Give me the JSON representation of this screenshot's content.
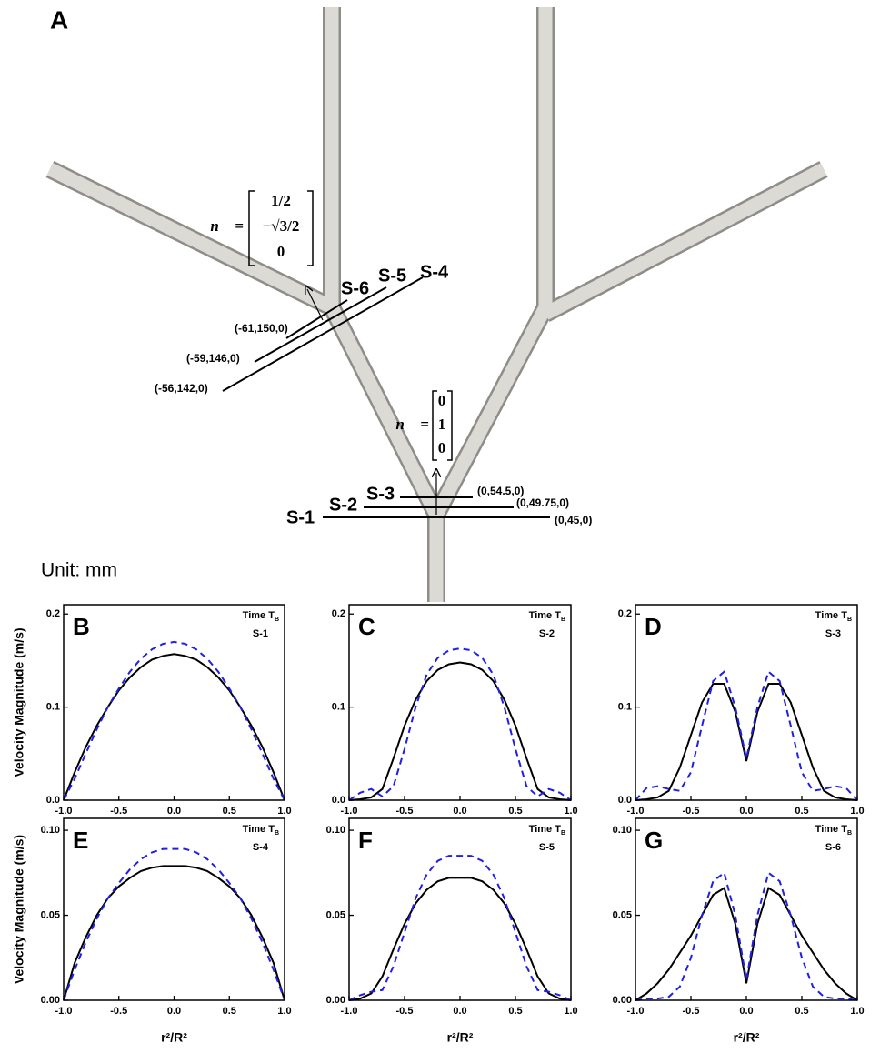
{
  "diagram": {
    "label": "A",
    "unit": "Unit: mm",
    "normals": [
      {
        "symbol": "n⃗ =",
        "components": [
          "1/2",
          "−√3/2",
          "0"
        ]
      },
      {
        "symbol": "n⃗ =",
        "components": [
          "0",
          "1",
          "0"
        ]
      }
    ],
    "sections": [
      {
        "label": "S-1",
        "point": "(0,45,0)"
      },
      {
        "label": "S-2",
        "point": "(0,49.75,0)"
      },
      {
        "label": "S-3",
        "point": "(0,54.5,0)"
      },
      {
        "label": "S-4",
        "point": "(-56,142,0)"
      },
      {
        "label": "S-5",
        "point": "(-59,146,0)"
      },
      {
        "label": "S-6",
        "point": "(-61,150,0)"
      }
    ]
  },
  "chart_data": [
    {
      "type": "line",
      "panel": "B",
      "time_label": "Time T",
      "time_subscript": "B",
      "section": "S-1",
      "ylabel": "Velocity Magnitude (m/s)",
      "x": [
        -1.0,
        -0.9,
        -0.8,
        -0.7,
        -0.6,
        -0.5,
        -0.4,
        -0.3,
        -0.2,
        -0.1,
        0.0,
        0.1,
        0.2,
        0.3,
        0.4,
        0.5,
        0.6,
        0.7,
        0.8,
        0.9,
        1.0
      ],
      "series": [
        {
          "color": "#000000",
          "dash": false,
          "values": [
            0,
            0.03,
            0.057,
            0.08,
            0.1,
            0.118,
            0.132,
            0.143,
            0.151,
            0.155,
            0.157,
            0.155,
            0.151,
            0.143,
            0.132,
            0.118,
            0.1,
            0.08,
            0.057,
            0.03,
            0
          ]
        },
        {
          "color": "#1f1fe6",
          "dash": true,
          "values": [
            0,
            0.023,
            0.05,
            0.076,
            0.1,
            0.12,
            0.138,
            0.152,
            0.162,
            0.168,
            0.17,
            0.168,
            0.162,
            0.152,
            0.138,
            0.12,
            0.1,
            0.076,
            0.05,
            0.023,
            0
          ]
        }
      ],
      "xlim": [
        -1,
        1
      ],
      "ylim": [
        0,
        0.21
      ],
      "xticks": [
        {
          "value": -1,
          "label": "-1.0"
        },
        -0.5,
        {
          "value": 0,
          "label": "0.0"
        },
        0.5,
        {
          "value": 1,
          "label": "1.0"
        }
      ],
      "yticks": [
        {
          "value": 0,
          "label": "0.0"
        },
        0.1,
        0.2
      ]
    },
    {
      "type": "line",
      "panel": "C",
      "time_label": "Time T",
      "time_subscript": "B",
      "section": "S-2",
      "x": [
        -1.0,
        -0.9,
        -0.8,
        -0.7,
        -0.6,
        -0.5,
        -0.4,
        -0.3,
        -0.2,
        -0.1,
        0.0,
        0.1,
        0.2,
        0.3,
        0.4,
        0.5,
        0.6,
        0.7,
        0.8,
        0.9,
        1.0
      ],
      "series": [
        {
          "color": "#000000",
          "dash": false,
          "values": [
            0,
            0.001,
            0.003,
            0.012,
            0.045,
            0.08,
            0.108,
            0.128,
            0.14,
            0.146,
            0.148,
            0.146,
            0.14,
            0.128,
            0.108,
            0.08,
            0.045,
            0.012,
            0.003,
            0.001,
            0
          ]
        },
        {
          "color": "#1f1fe6",
          "dash": true,
          "values": [
            0,
            0.008,
            0.012,
            0.004,
            0.015,
            0.055,
            0.1,
            0.135,
            0.153,
            0.161,
            0.163,
            0.161,
            0.153,
            0.135,
            0.1,
            0.055,
            0.015,
            0.004,
            0.012,
            0.008,
            0
          ]
        }
      ],
      "xlim": [
        -1,
        1
      ],
      "ylim": [
        0,
        0.21
      ],
      "xticks": [
        {
          "value": -1,
          "label": "-1.0"
        },
        -0.5,
        {
          "value": 0,
          "label": "0.0"
        },
        0.5,
        {
          "value": 1,
          "label": "1.0"
        }
      ],
      "yticks": [
        {
          "value": 0,
          "label": "0.0"
        },
        0.1,
        0.2
      ]
    },
    {
      "type": "line",
      "panel": "D",
      "time_label": "Time T",
      "time_subscript": "B",
      "section": "S-3",
      "x": [
        -1.0,
        -0.9,
        -0.8,
        -0.7,
        -0.6,
        -0.5,
        -0.4,
        -0.3,
        -0.2,
        -0.1,
        0.0,
        0.1,
        0.2,
        0.3,
        0.4,
        0.5,
        0.6,
        0.7,
        0.8,
        0.9,
        1.0
      ],
      "series": [
        {
          "color": "#000000",
          "dash": false,
          "values": [
            0,
            0.001,
            0.003,
            0.01,
            0.035,
            0.07,
            0.105,
            0.125,
            0.125,
            0.095,
            0.042,
            0.095,
            0.125,
            0.125,
            0.105,
            0.07,
            0.035,
            0.01,
            0.003,
            0.001,
            0
          ]
        },
        {
          "color": "#1f1fe6",
          "dash": true,
          "values": [
            0,
            0.013,
            0.015,
            0.012,
            0.01,
            0.03,
            0.08,
            0.128,
            0.138,
            0.1,
            0.045,
            0.1,
            0.138,
            0.128,
            0.08,
            0.03,
            0.01,
            0.012,
            0.015,
            0.013,
            0
          ]
        }
      ],
      "xlim": [
        -1,
        1
      ],
      "ylim": [
        0,
        0.21
      ],
      "xticks": [
        {
          "value": -1,
          "label": "-1.0"
        },
        -0.5,
        {
          "value": 0,
          "label": "0.0"
        },
        0.5,
        {
          "value": 1,
          "label": "1.0"
        }
      ],
      "yticks": [
        {
          "value": 0,
          "label": "0.0"
        },
        0.1,
        0.2
      ]
    },
    {
      "type": "line",
      "panel": "E",
      "time_label": "Time T",
      "time_subscript": "B",
      "section": "S-4",
      "ylabel": "Velocity Magnitude (m/s)",
      "xlabel": "r²/R²",
      "x": [
        -1.0,
        -0.9,
        -0.8,
        -0.7,
        -0.6,
        -0.5,
        -0.4,
        -0.3,
        -0.2,
        -0.1,
        0.0,
        0.1,
        0.2,
        0.3,
        0.4,
        0.5,
        0.6,
        0.7,
        0.8,
        0.9,
        1.0
      ],
      "series": [
        {
          "color": "#000000",
          "dash": false,
          "values": [
            0,
            0.022,
            0.037,
            0.05,
            0.06,
            0.067,
            0.072,
            0.076,
            0.078,
            0.079,
            0.079,
            0.079,
            0.078,
            0.076,
            0.072,
            0.067,
            0.06,
            0.05,
            0.037,
            0.022,
            0
          ]
        },
        {
          "color": "#1f1fe6",
          "dash": true,
          "values": [
            0,
            0.018,
            0.034,
            0.048,
            0.06,
            0.069,
            0.077,
            0.083,
            0.087,
            0.089,
            0.089,
            0.089,
            0.087,
            0.083,
            0.077,
            0.069,
            0.06,
            0.048,
            0.034,
            0.018,
            0
          ]
        }
      ],
      "xlim": [
        -1,
        1
      ],
      "ylim": [
        0,
        0.107
      ],
      "xticks": [
        {
          "value": -1,
          "label": "-1.0"
        },
        -0.5,
        {
          "value": 0,
          "label": "0.0"
        },
        0.5,
        {
          "value": 1,
          "label": "1.0"
        }
      ],
      "yticks": [
        {
          "value": 0,
          "label": "0.00"
        },
        0.05,
        {
          "value": 0.1,
          "label": "0.10"
        }
      ]
    },
    {
      "type": "line",
      "panel": "F",
      "time_label": "Time T",
      "time_subscript": "B",
      "section": "S-5",
      "xlabel": "r²/R²",
      "x": [
        -1.0,
        -0.9,
        -0.8,
        -0.7,
        -0.6,
        -0.5,
        -0.4,
        -0.3,
        -0.2,
        -0.1,
        0.0,
        0.1,
        0.2,
        0.3,
        0.4,
        0.5,
        0.6,
        0.7,
        0.8,
        0.9,
        1.0
      ],
      "series": [
        {
          "color": "#000000",
          "dash": false,
          "values": [
            0,
            0.001,
            0.004,
            0.014,
            0.03,
            0.045,
            0.057,
            0.065,
            0.07,
            0.072,
            0.072,
            0.072,
            0.07,
            0.065,
            0.057,
            0.045,
            0.03,
            0.014,
            0.004,
            0.001,
            0
          ]
        },
        {
          "color": "#1f1fe6",
          "dash": true,
          "values": [
            0,
            0.003,
            0.005,
            0.006,
            0.02,
            0.04,
            0.06,
            0.074,
            0.082,
            0.085,
            0.085,
            0.085,
            0.082,
            0.074,
            0.06,
            0.04,
            0.02,
            0.006,
            0.005,
            0.003,
            0
          ]
        }
      ],
      "xlim": [
        -1,
        1
      ],
      "ylim": [
        0,
        0.107
      ],
      "xticks": [
        {
          "value": -1,
          "label": "-1.0"
        },
        -0.5,
        {
          "value": 0,
          "label": "0.0"
        },
        0.5,
        {
          "value": 1,
          "label": "1.0"
        }
      ],
      "yticks": [
        {
          "value": 0,
          "label": "0.00"
        },
        0.05,
        {
          "value": 0.1,
          "label": "0.10"
        }
      ]
    },
    {
      "type": "line",
      "panel": "G",
      "time_label": "Time T",
      "time_subscript": "B",
      "section": "S-6",
      "xlabel": "r²/R²",
      "x": [
        -1.0,
        -0.9,
        -0.8,
        -0.7,
        -0.6,
        -0.5,
        -0.4,
        -0.3,
        -0.2,
        -0.1,
        0.0,
        0.1,
        0.2,
        0.3,
        0.4,
        0.5,
        0.6,
        0.7,
        0.8,
        0.9,
        1.0
      ],
      "series": [
        {
          "color": "#000000",
          "dash": false,
          "values": [
            0,
            0.004,
            0.01,
            0.018,
            0.028,
            0.038,
            0.05,
            0.062,
            0.066,
            0.045,
            0.01,
            0.045,
            0.066,
            0.062,
            0.05,
            0.038,
            0.028,
            0.018,
            0.01,
            0.004,
            0
          ]
        },
        {
          "color": "#1f1fe6",
          "dash": true,
          "values": [
            0,
            0.001,
            0.001,
            0.002,
            0.008,
            0.025,
            0.05,
            0.07,
            0.075,
            0.05,
            0.012,
            0.05,
            0.075,
            0.07,
            0.05,
            0.025,
            0.008,
            0.002,
            0.001,
            0.001,
            0
          ]
        }
      ],
      "xlim": [
        -1,
        1
      ],
      "ylim": [
        0,
        0.107
      ],
      "xticks": [
        {
          "value": -1,
          "label": "-1.0"
        },
        -0.5,
        {
          "value": 0,
          "label": "0.0"
        },
        0.5,
        {
          "value": 1,
          "label": "1.0"
        }
      ],
      "yticks": [
        {
          "value": 0,
          "label": "0.00"
        },
        0.05,
        {
          "value": 0.1,
          "label": "0.10"
        }
      ]
    }
  ]
}
